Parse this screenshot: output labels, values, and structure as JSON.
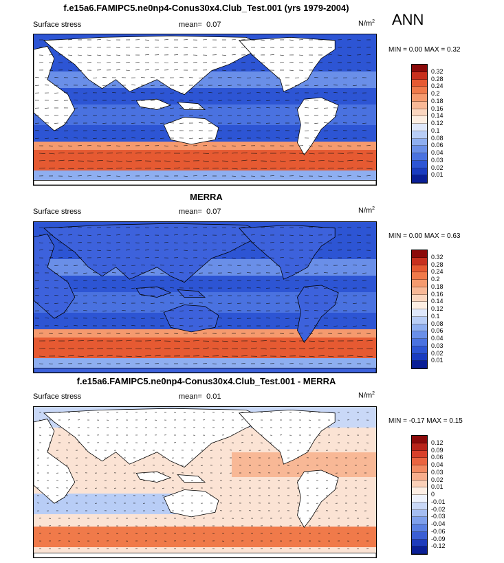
{
  "ann_label": "ANN",
  "units_base": "N/m",
  "units_exp": "2",
  "panels": [
    {
      "id": "model",
      "title": "f.e15a6.FAMIPC5.ne0np4-Conus30x4.Club_Test.001 (yrs 1979-2004)",
      "left_label": "Surface stress",
      "mean_label": "mean=",
      "mean_value": "0.07",
      "minmax": "MIN =   0.00 MAX =   0.32",
      "colorbar_ticks": [
        "0.32",
        "0.28",
        "0.24",
        "0.2",
        "0.18",
        "0.16",
        "0.14",
        "0.12",
        "0.1",
        "0.08",
        "0.06",
        "0.04",
        "0.03",
        "0.02",
        "0.01"
      ],
      "colorbar_colors": [
        "#8b0a0a",
        "#c8301e",
        "#e65a32",
        "#f07a4a",
        "#f59a6e",
        "#f8b896",
        "#fbd6bf",
        "#fdeee2",
        "#dfe8fb",
        "#b8cdf6",
        "#8eaef0",
        "#6a8fe8",
        "#4a72e0",
        "#2d55d4",
        "#1a3cc0",
        "#0a1f96"
      ],
      "style": "magnitude"
    },
    {
      "id": "obs",
      "title": "MERRA",
      "left_label": "Surface stress",
      "mean_label": "mean=",
      "mean_value": "0.07",
      "minmax": "MIN =   0.00 MAX =   0.63",
      "colorbar_ticks": [
        "0.32",
        "0.28",
        "0.24",
        "0.2",
        "0.18",
        "0.16",
        "0.14",
        "0.12",
        "0.1",
        "0.08",
        "0.06",
        "0.04",
        "0.03",
        "0.02",
        "0.01"
      ],
      "colorbar_colors": [
        "#8b0a0a",
        "#c8301e",
        "#e65a32",
        "#f07a4a",
        "#f59a6e",
        "#f8b896",
        "#fbd6bf",
        "#fdeee2",
        "#dfe8fb",
        "#b8cdf6",
        "#8eaef0",
        "#6a8fe8",
        "#4a72e0",
        "#2d55d4",
        "#1a3cc0",
        "#0a1f96"
      ],
      "style": "magnitude"
    },
    {
      "id": "diff",
      "title": "f.e15a6.FAMIPC5.ne0np4-Conus30x4.Club_Test.001 - MERRA",
      "left_label": "Surface stress",
      "mean_label": "mean=",
      "mean_value": "0.01",
      "minmax": "MIN =  -0.17 MAX =   0.15",
      "colorbar_ticks": [
        "0.12",
        "0.09",
        "0.06",
        "0.04",
        "0.03",
        "0.02",
        "0.01",
        "0",
        "-0.01",
        "-0.02",
        "-0.03",
        "-0.04",
        "-0.06",
        "-0.09",
        "-0.12"
      ],
      "colorbar_colors": [
        "#8b0a0a",
        "#b8241a",
        "#d8402a",
        "#ea6440",
        "#f28a62",
        "#f7ad8c",
        "#fbd0b8",
        "#fdeee4",
        "#eef2fc",
        "#c9d8f7",
        "#a4bdf1",
        "#7e9feb",
        "#5a80e2",
        "#3a5ed4",
        "#1e3cbc",
        "#0a1f96"
      ],
      "style": "difference"
    }
  ]
}
